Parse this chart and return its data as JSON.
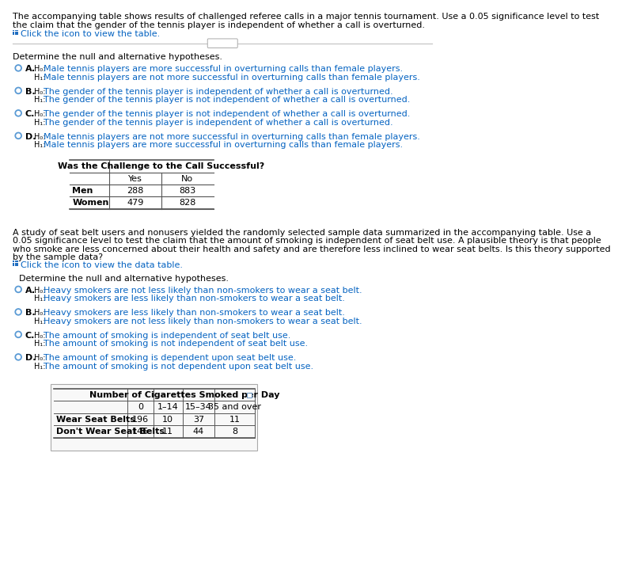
{
  "bg_color": "#ffffff",
  "text_color": "#000000",
  "blue_color": "#1f4e79",
  "link_color": "#0563C1",
  "circle_color": "#5b9bd5",
  "header_text_1a": "The accompanying table shows results of challenged referee calls in a major tennis tournament. Use a 0.05 significance level to test",
  "header_text_1b": "the claim that the gender of the tennis player is independent of whether a call is overturned.",
  "icon_text_1": "Click the icon to view the table.",
  "section1_label": "Determine the null and alternative hypotheses.",
  "options_1": [
    {
      "letter": "A",
      "h0": "Male tennis players are more successful in overturning calls than female players.",
      "h1": "Male tennis players are not more successful in overturning calls than female players."
    },
    {
      "letter": "B",
      "h0": "The gender of the tennis player is independent of whether a call is overturned.",
      "h1": "The gender of the tennis player is not independent of whether a call is overturned."
    },
    {
      "letter": "C",
      "h0": "The gender of the tennis player is not independent of whether a call is overturned.",
      "h1": "The gender of the tennis player is independent of whether a call is overturned."
    },
    {
      "letter": "D",
      "h0": "Male tennis players are not more successful in overturning calls than female players.",
      "h1": "Male tennis players are more successful in overturning calls than female players."
    }
  ],
  "table1_header_main": "Was the Challenge to the Call Successful?",
  "table1_header_sub": [
    "Yes",
    "No"
  ],
  "table1_rows": [
    [
      "Men",
      "288",
      "883"
    ],
    [
      "Women",
      "479",
      "828"
    ]
  ],
  "header_text_2": [
    "A study of seat belt users and nonusers yielded the randomly selected sample data summarized in the accompanying table. Use a",
    "0.05 significance level to test the claim that the amount of smoking is independent of seat belt use. A plausible theory is that people",
    "who smoke are less concerned about their health and safety and are therefore less inclined to wear seat belts. Is this theory supported",
    "by the sample data?"
  ],
  "icon_text_2": "Click the icon to view the data table.",
  "section2_label": "Determine the null and alternative hypotheses.",
  "options_2": [
    {
      "letter": "A",
      "h0": "Heavy smokers are not less likely than non-smokers to wear a seat belt.",
      "h1": "Heavy smokers are less likely than non-smokers to wear a seat belt."
    },
    {
      "letter": "B",
      "h0": "Heavy smokers are less likely than non-smokers to wear a seat belt.",
      "h1": "Heavy smokers are not less likely than non-smokers to wear a seat belt."
    },
    {
      "letter": "C",
      "h0": "The amount of smoking is independent of seat belt use.",
      "h1": "The amount of smoking is not independent of seat belt use."
    },
    {
      "letter": "D",
      "h0": "The amount of smoking is dependent upon seat belt use.",
      "h1": "The amount of smoking is not dependent upon seat belt use."
    }
  ],
  "table2_header_main": "Number of Cigarettes Smoked per Day",
  "table2_header_sub": [
    "0",
    "1–14",
    "15–34",
    "35 and over"
  ],
  "table2_rows": [
    [
      "Wear Seat Belts",
      "196",
      "10",
      "37",
      "11"
    ],
    [
      "Don't Wear Seat Belts",
      "146",
      "11",
      "44",
      "8"
    ]
  ]
}
